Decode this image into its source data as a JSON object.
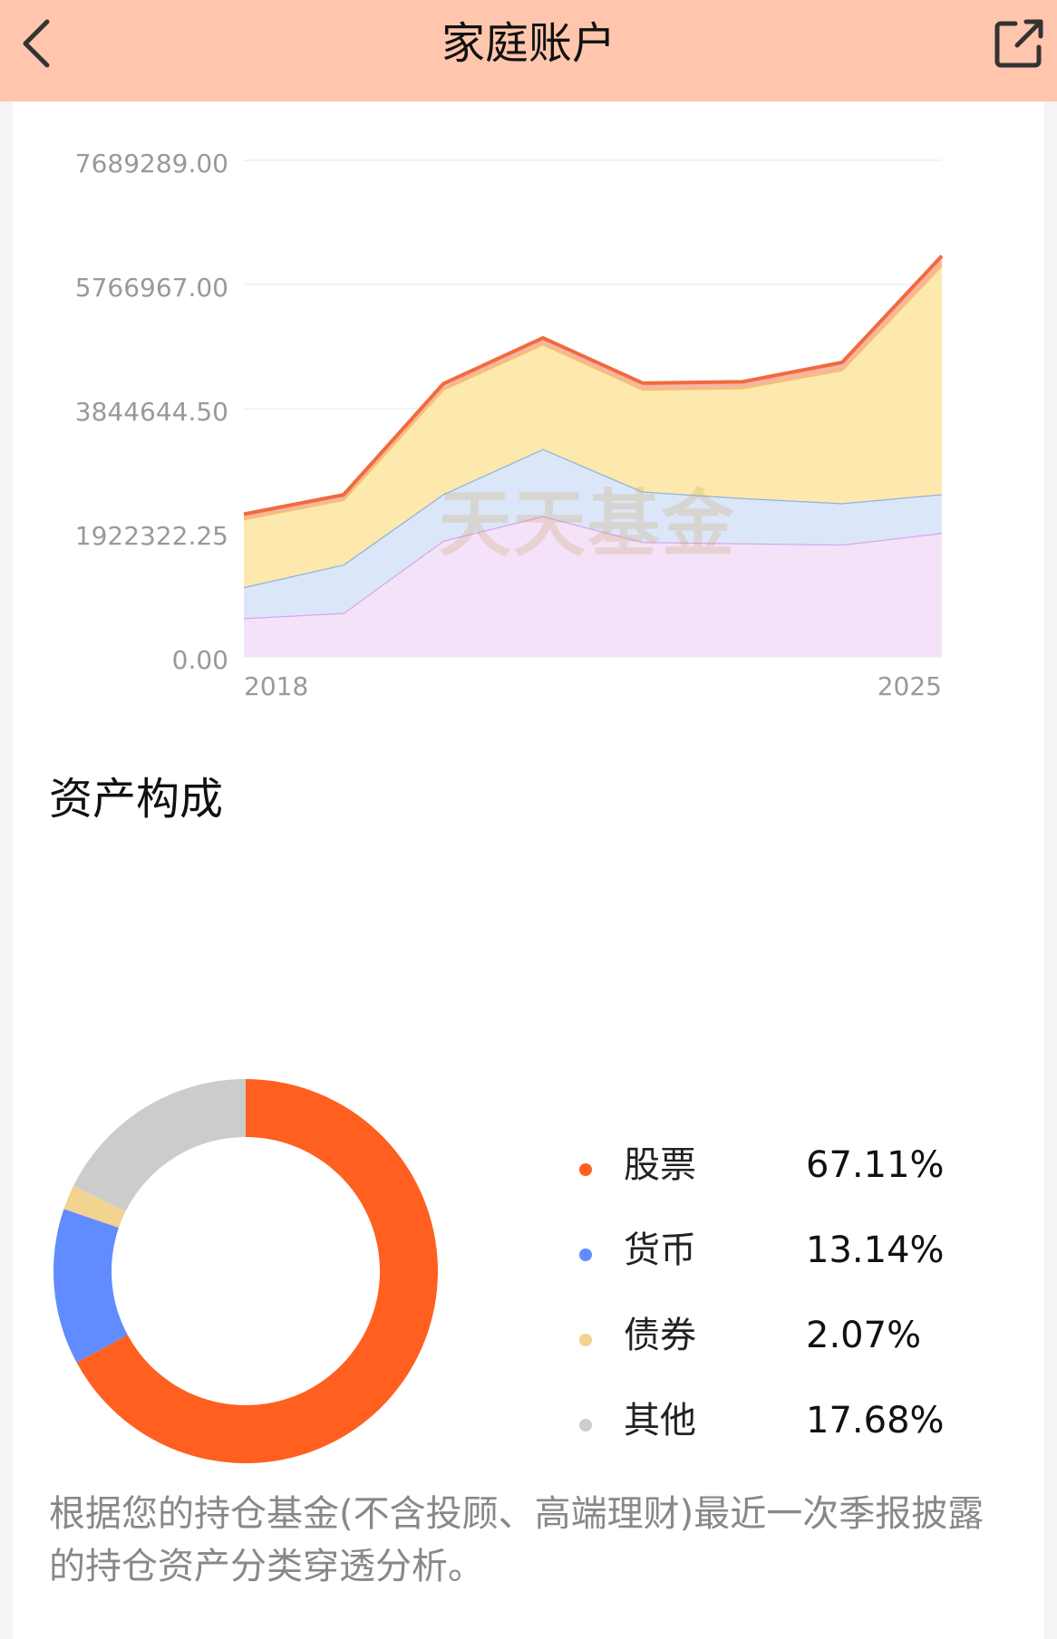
{
  "header": {
    "title": "家庭账户",
    "back_icon": "chevron-left-icon",
    "share_icon": "share-external-icon"
  },
  "watermark": "天天基金",
  "chart_data": {
    "type": "area",
    "stacked": true,
    "y_ticks": [
      "7689289.00",
      "5766967.00",
      "3844644.50",
      "1922322.25",
      "0.00"
    ],
    "x_labels": [
      "2018",
      "2025"
    ],
    "ylim": [
      0,
      7689289
    ],
    "x": [
      2018,
      2019,
      2020,
      2021,
      2022,
      2023,
      2024,
      2025
    ],
    "series": [
      {
        "color": "#d9a6ec",
        "fill": "#f4e2f9",
        "values": [
          600000,
          680000,
          1800000,
          2180000,
          1780000,
          1760000,
          1740000,
          1920000
        ]
      },
      {
        "color": "#8fb4d8",
        "fill": "#dbe7f9",
        "values": [
          480000,
          750000,
          720000,
          1040000,
          780000,
          700000,
          640000,
          600000
        ]
      },
      {
        "color": "#f5c650",
        "fill": "#fde8ad",
        "values": [
          1050000,
          1000000,
          1620000,
          1620000,
          1580000,
          1700000,
          2060000,
          3540000
        ]
      },
      {
        "color": "#f26a3e",
        "fill": "#f7b6a0",
        "values": [
          80000,
          80000,
          90000,
          100000,
          100000,
          100000,
          120000,
          150000
        ]
      }
    ]
  },
  "composition": {
    "title": "资产构成",
    "items": [
      {
        "name": "股票",
        "percent": "67.11%",
        "value": 67.11,
        "color": "#ff5f1f"
      },
      {
        "name": "货币",
        "percent": "13.14%",
        "value": 13.14,
        "color": "#618cff"
      },
      {
        "name": "债券",
        "percent": "2.07%",
        "value": 2.07,
        "color": "#f2d38f"
      },
      {
        "name": "其他",
        "percent": "17.68%",
        "value": 17.68,
        "color": "#cccccc"
      }
    ]
  },
  "note": "根据您的持仓基金(不含投顾、高端理财)最近一次季报披露的持仓资产分类穿透分析。"
}
